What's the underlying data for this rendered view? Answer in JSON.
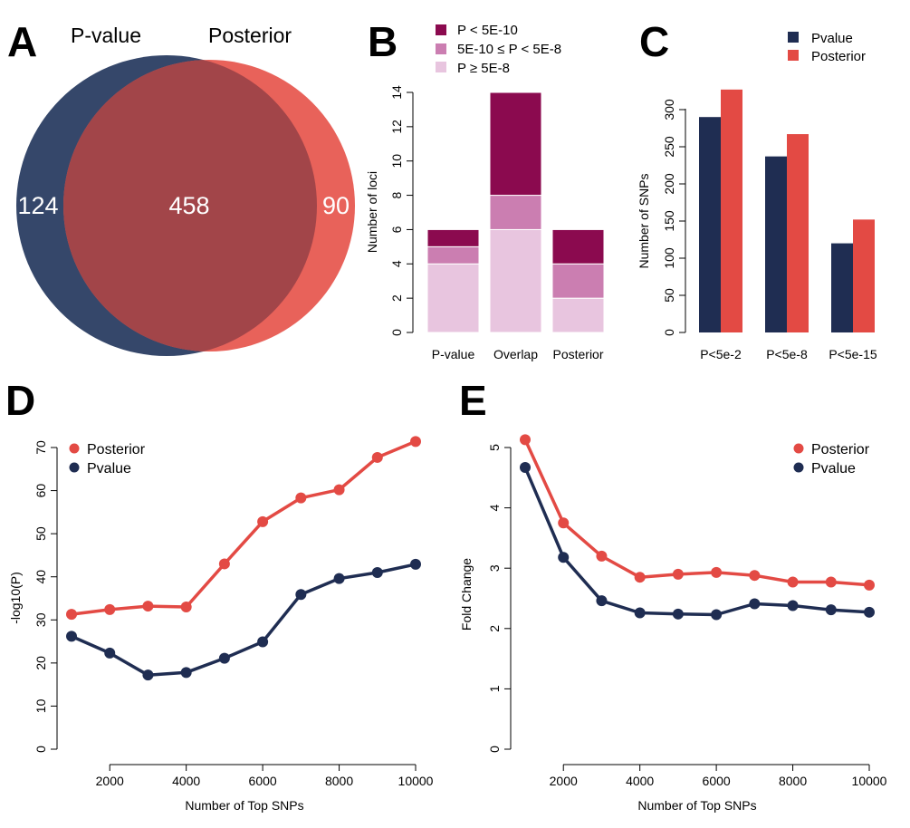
{
  "panels": {
    "A": {
      "letter": "A",
      "set1_label": "P-value",
      "set2_label": "Posterior",
      "only_set1": "124",
      "overlap": "458",
      "only_set2": "90",
      "colors": {
        "set1": "#35476a",
        "set2": "#e8625a",
        "overlap": "#a24549"
      }
    },
    "B": {
      "letter": "B",
      "ylabel": "Number of loci",
      "yticks": [
        "0",
        "2",
        "4",
        "6",
        "8",
        "10",
        "12",
        "14"
      ],
      "legend": [
        "P < 5E-10",
        "5E-10 ≤ P < 5E-8",
        "P ≥ 5E-8"
      ]
    },
    "C": {
      "letter": "C",
      "ylabel": "Number of SNPs",
      "yticks": [
        "0",
        "50",
        "100",
        "150",
        "200",
        "250",
        "300"
      ],
      "legend": [
        "Pvalue",
        "Posterior"
      ]
    },
    "D": {
      "letter": "D",
      "xlabel": "Number of Top SNPs",
      "ylabel": "-log10(P)",
      "xticks": [
        "2000",
        "4000",
        "6000",
        "8000",
        "10000"
      ],
      "yticks": [
        "0",
        "10",
        "20",
        "30",
        "40",
        "50",
        "60",
        "70"
      ],
      "legend": [
        "Posterior",
        "Pvalue"
      ]
    },
    "E": {
      "letter": "E",
      "xlabel": "Number of Top SNPs",
      "ylabel": "Fold Change",
      "xticks": [
        "2000",
        "4000",
        "6000",
        "8000",
        "10000"
      ],
      "yticks": [
        "0",
        "1",
        "2",
        "3",
        "4",
        "5"
      ],
      "legend": [
        "Posterior",
        "Pvalue"
      ]
    }
  },
  "chart_data": [
    {
      "panel": "A",
      "type": "venn",
      "sets": [
        "P-value",
        "Posterior"
      ],
      "only_P-value": 124,
      "overlap": 458,
      "only_Posterior": 90
    },
    {
      "panel": "B",
      "type": "bar",
      "stacked": true,
      "categories": [
        "P-value",
        "Overlap",
        "Posterior"
      ],
      "series": [
        {
          "name": "P ≥ 5E-8",
          "values": [
            4,
            6,
            2
          ],
          "color": "#e8c5df"
        },
        {
          "name": "5E-10 ≤ P < 5E-8",
          "values": [
            1,
            2,
            2
          ],
          "color": "#cb7eb1"
        },
        {
          "name": "P < 5E-10",
          "values": [
            1,
            6,
            2
          ],
          "color": "#8b0a4f"
        }
      ],
      "ylabel": "Number of loci",
      "ylim": [
        0,
        14
      ],
      "legend_position": "top"
    },
    {
      "panel": "C",
      "type": "bar",
      "categories": [
        "P<5e-2",
        "P<5e-8",
        "P<5e-15"
      ],
      "series": [
        {
          "name": "Pvalue",
          "values": [
            290,
            237,
            120
          ],
          "color": "#1f2d52"
        },
        {
          "name": "Posterior",
          "values": [
            327,
            267,
            152
          ],
          "color": "#e34a44"
        }
      ],
      "ylabel": "Number of SNPs",
      "ylim": [
        0,
        330
      ],
      "legend_position": "top-right"
    },
    {
      "panel": "D",
      "type": "line",
      "x": [
        1000,
        2000,
        3000,
        4000,
        5000,
        6000,
        7000,
        8000,
        9000,
        10000
      ],
      "series": [
        {
          "name": "Posterior",
          "values": [
            31.3,
            32.4,
            33.2,
            33.0,
            43.0,
            52.8,
            58.3,
            60.2,
            67.7,
            71.4
          ],
          "color": "#e34a44"
        },
        {
          "name": "Pvalue",
          "values": [
            26.2,
            22.3,
            17.2,
            17.8,
            21.1,
            24.9,
            35.9,
            39.6,
            41.0,
            42.9
          ],
          "color": "#1f2d52"
        }
      ],
      "xlabel": "Number of Top SNPs",
      "ylabel": "-log10(P)",
      "xlim": [
        1000,
        10000
      ],
      "ylim": [
        0,
        72
      ],
      "legend_position": "top-left"
    },
    {
      "panel": "E",
      "type": "line",
      "x": [
        1000,
        2000,
        3000,
        4000,
        5000,
        6000,
        7000,
        8000,
        9000,
        10000
      ],
      "series": [
        {
          "name": "Posterior",
          "values": [
            5.13,
            3.75,
            3.2,
            2.85,
            2.9,
            2.93,
            2.88,
            2.77,
            2.77,
            2.72
          ],
          "color": "#e34a44"
        },
        {
          "name": "Pvalue",
          "values": [
            4.67,
            3.18,
            2.46,
            2.26,
            2.24,
            2.23,
            2.41,
            2.38,
            2.31,
            2.27
          ],
          "color": "#1f2d52"
        }
      ],
      "xlabel": "Number of Top SNPs",
      "ylabel": "Fold Change",
      "xlim": [
        1000,
        10000
      ],
      "ylim": [
        0,
        5.2
      ],
      "legend_position": "top-right"
    }
  ]
}
